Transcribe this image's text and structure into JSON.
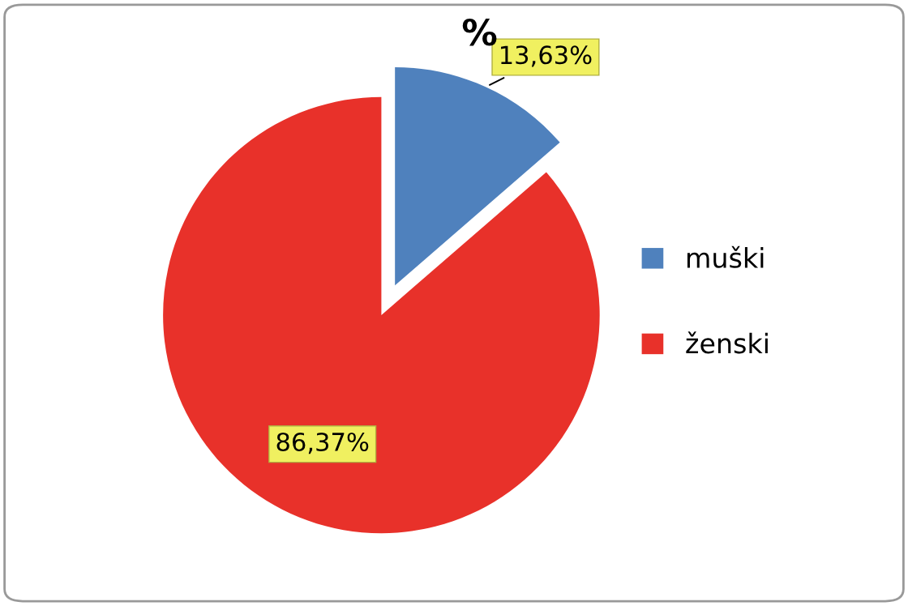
{
  "chart_data": {
    "type": "pie",
    "title": "%",
    "categories": [
      "muški",
      "ženski"
    ],
    "values": [
      13.63,
      86.37
    ],
    "value_labels": [
      "13,63%",
      "86,37%"
    ],
    "colors": [
      "#4f81bd",
      "#e8312a"
    ],
    "legend": "right"
  }
}
